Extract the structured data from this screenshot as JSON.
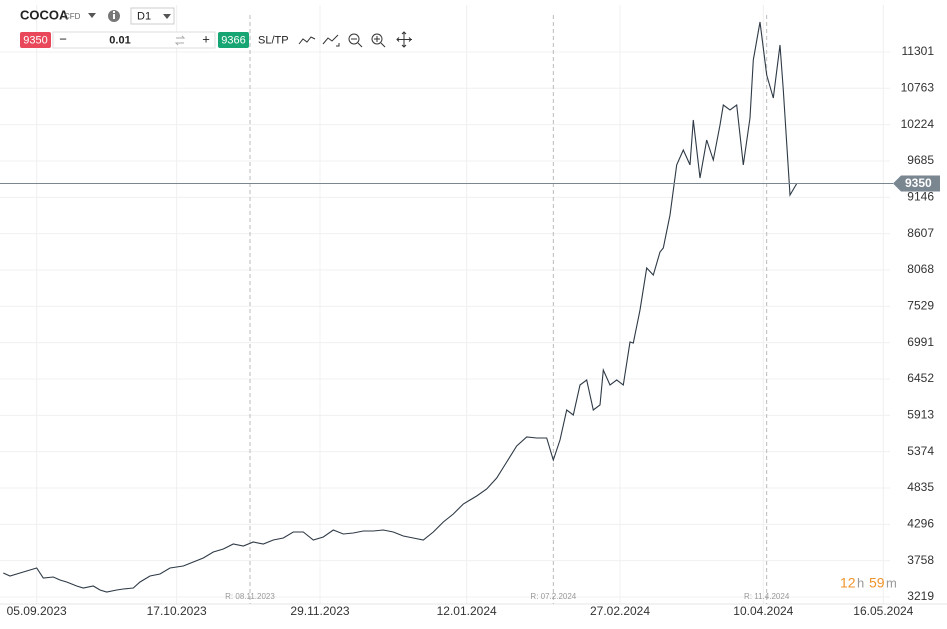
{
  "toolbar": {
    "symbol": "COCOA",
    "symbol_type": "CFD",
    "timeframe": "D1",
    "sell_price": "9350",
    "volume": "0.01",
    "buy_price": "9366",
    "sl_tp": "SL/TP",
    "minus": "−",
    "plus": "+"
  },
  "timer": [
    "12",
    "h",
    "59",
    "m"
  ],
  "chart_data": {
    "type": "line",
    "x": [
      "2023-08-26",
      "2023-08-28",
      "2023-08-31",
      "2023-09-03",
      "2023-09-05",
      "2023-09-07",
      "2023-09-10",
      "2023-09-12",
      "2023-09-14",
      "2023-09-17",
      "2023-09-19",
      "2023-09-22",
      "2023-09-24",
      "2023-09-26",
      "2023-09-29",
      "2023-10-01",
      "2023-10-04",
      "2023-10-06",
      "2023-10-09",
      "2023-10-12",
      "2023-10-15",
      "2023-10-19",
      "2023-10-22",
      "2023-10-25",
      "2023-10-28",
      "2023-10-31",
      "2023-11-03",
      "2023-11-06",
      "2023-11-09",
      "2023-11-12",
      "2023-11-15",
      "2023-11-18",
      "2023-11-21",
      "2023-11-24",
      "2023-11-27",
      "2023-11-30",
      "2023-12-03",
      "2023-12-06",
      "2023-12-09",
      "2023-12-12",
      "2023-12-15",
      "2023-12-18",
      "2023-12-21",
      "2023-12-24",
      "2023-12-27",
      "2023-12-30",
      "2024-01-02",
      "2024-01-05",
      "2024-01-08",
      "2024-01-11",
      "2024-01-13",
      "2024-01-15",
      "2024-01-18",
      "2024-01-21",
      "2024-01-24",
      "2024-01-27",
      "2024-01-30",
      "2024-02-02",
      "2024-02-05",
      "2024-02-07",
      "2024-02-09",
      "2024-02-11",
      "2024-02-13",
      "2024-02-15",
      "2024-02-17",
      "2024-02-19",
      "2024-02-21",
      "2024-02-22",
      "2024-02-24",
      "2024-02-26",
      "2024-02-28",
      "2024-03-01",
      "2024-03-02",
      "2024-03-04",
      "2024-03-06",
      "2024-03-08",
      "2024-03-10",
      "2024-03-11",
      "2024-03-13",
      "2024-03-15",
      "2024-03-17",
      "2024-03-19",
      "2024-03-20",
      "2024-03-22",
      "2024-03-24",
      "2024-03-26",
      "2024-03-28",
      "2024-03-29",
      "2024-03-31",
      "2024-04-02",
      "2024-04-04",
      "2024-04-06",
      "2024-04-07",
      "2024-04-09",
      "2024-04-11",
      "2024-04-13",
      "2024-04-15",
      "2024-04-16",
      "2024-04-18",
      "2024-04-20"
    ],
    "series": [
      {
        "name": "COCOA",
        "color": "#2e3a46",
        "values": [
          3575,
          3530,
          3575,
          3619,
          3649,
          3501,
          3516,
          3471,
          3441,
          3382,
          3352,
          3382,
          3323,
          3293,
          3323,
          3338,
          3352,
          3441,
          3530,
          3560,
          3649,
          3679,
          3738,
          3797,
          3886,
          3931,
          4005,
          3975,
          4035,
          4005,
          4064,
          4094,
          4183,
          4183,
          4064,
          4109,
          4213,
          4153,
          4168,
          4198,
          4198,
          4213,
          4183,
          4124,
          4094,
          4064,
          4183,
          4331,
          4450,
          4598,
          4658,
          4717,
          4821,
          4984,
          5221,
          5458,
          5592,
          5577,
          5577,
          5251,
          5547,
          5992,
          5918,
          6363,
          6437,
          5992,
          6066,
          6585,
          6363,
          6437,
          6363,
          7001,
          6986,
          7475,
          8098,
          7994,
          8335,
          8395,
          8884,
          9626,
          9848,
          9626,
          10293,
          9433,
          9996,
          9700,
          10219,
          10515,
          10441,
          10515,
          9626,
          10323,
          11183,
          11746,
          10960,
          10619,
          11405,
          10738,
          9181,
          9350
        ]
      }
    ],
    "xlim": [
      "2023-08-25",
      "2024-05-18"
    ],
    "xticks": [
      {
        "value": "2023-09-05",
        "label": "05.09.2023"
      },
      {
        "value": "2023-10-17",
        "label": "17.10.2023"
      },
      {
        "value": "2023-11-29",
        "label": "29.11.2023"
      },
      {
        "value": "2024-01-12",
        "label": "12.01.2024"
      },
      {
        "value": "2024-02-27",
        "label": "27.02.2024"
      },
      {
        "value": "2024-04-10",
        "label": "10.04.2024"
      },
      {
        "value": "2024-05-16",
        "label": "16.05.2024"
      }
    ],
    "ylim": [
      3115,
      11998
    ],
    "yticks": [
      3219,
      3758,
      4296,
      4835,
      5374,
      5913,
      6452,
      6991,
      7529,
      8068,
      8607,
      9146,
      9685,
      10224,
      10763,
      11301
    ],
    "grid": true,
    "current_price": 9350,
    "markers": [
      {
        "date": "2023-11-08",
        "label": "R: 08.11.2023"
      },
      {
        "date": "2024-02-07",
        "label": "R: 07.2.2024"
      },
      {
        "date": "2024-04-11",
        "label": "R: 11.4.2024"
      }
    ]
  }
}
